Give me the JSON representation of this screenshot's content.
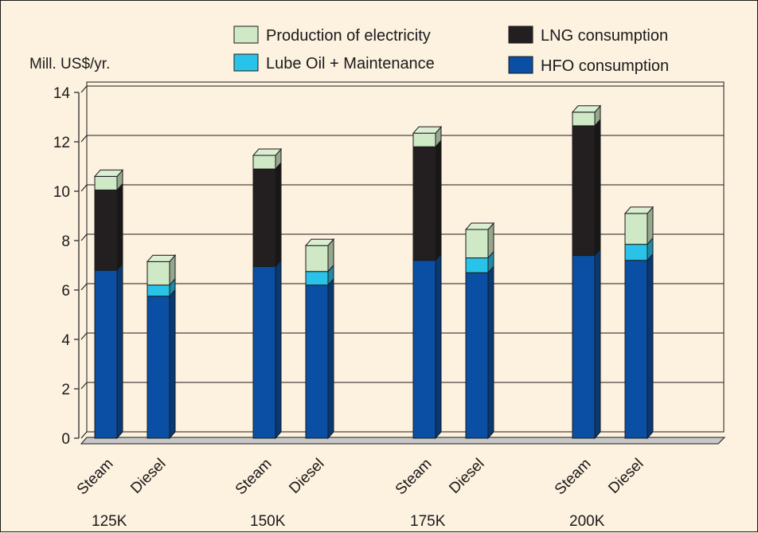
{
  "chart_data": {
    "type": "bar",
    "stacked": true,
    "ylabel": "Mill. US$/yr.",
    "ylim": [
      0,
      14
    ],
    "yticks": [
      0,
      2,
      4,
      6,
      8,
      10,
      12,
      14
    ],
    "grid": true,
    "legend_position": "top",
    "groups": [
      "125K",
      "150K",
      "175K",
      "200K"
    ],
    "categories": [
      "Steam",
      "Diesel"
    ],
    "series": [
      {
        "name": "HFO consumption",
        "color": "#0a4fa3",
        "values": [
          [
            6.8,
            5.75
          ],
          [
            6.95,
            6.2
          ],
          [
            7.2,
            6.7
          ],
          [
            7.4,
            7.2
          ]
        ]
      },
      {
        "name": "Lube Oil + Maintenance",
        "color": "#29c3ea",
        "values": [
          [
            0,
            0.45
          ],
          [
            0,
            0.55
          ],
          [
            0,
            0.6
          ],
          [
            0,
            0.65
          ]
        ]
      },
      {
        "name": "LNG consumption",
        "color": "#231f20",
        "values": [
          [
            3.25,
            0
          ],
          [
            3.95,
            0
          ],
          [
            4.6,
            0
          ],
          [
            5.25,
            0
          ]
        ]
      },
      {
        "name": "Production of electricity",
        "color": "#cfe8c5",
        "values": [
          [
            0.55,
            0.95
          ],
          [
            0.55,
            1.05
          ],
          [
            0.55,
            1.15
          ],
          [
            0.55,
            1.25
          ]
        ]
      }
    ]
  }
}
